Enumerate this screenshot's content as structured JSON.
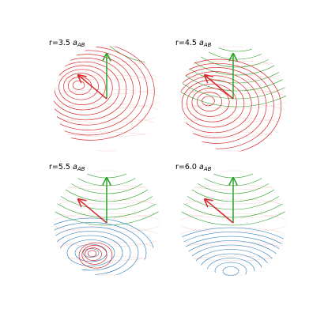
{
  "panels": [
    {
      "label": "r=3.5",
      "symbol": "a",
      "subscript": "AB"
    },
    {
      "label": "r=4.5",
      "symbol": "a",
      "subscript": "AB"
    },
    {
      "label": "r=5.5",
      "symbol": "a",
      "subscript": "AB"
    },
    {
      "label": "r=6.0",
      "symbol": "a",
      "subscript": "AB"
    }
  ]
}
